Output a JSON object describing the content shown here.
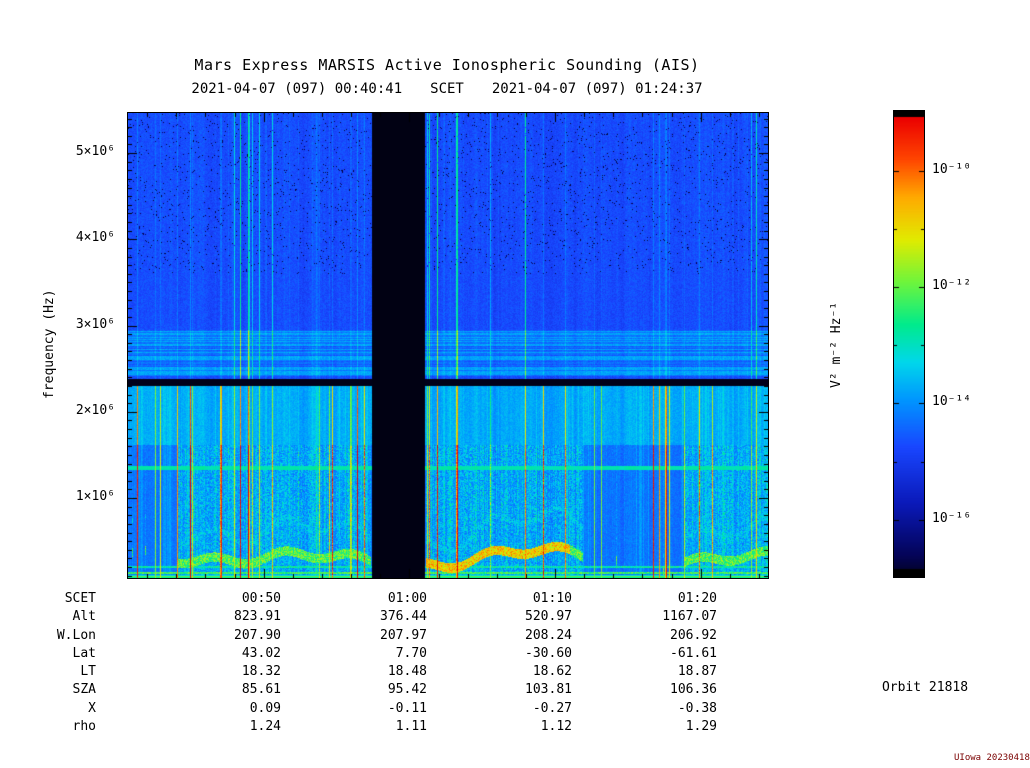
{
  "orbit_label": "Orbit 21818",
  "credit": "UIowa 20230418",
  "chart_data": {
    "type": "heatmap",
    "title": "Mars Express MARSIS Active Ionospheric Sounding (AIS)",
    "x_axis": {
      "label": "SCET",
      "start": "2021-04-07 (097) 00:40:41",
      "end": "2021-04-07 (097) 01:24:37",
      "tick_labels": [
        "00:50",
        "01:00",
        "01:10",
        "01:20"
      ],
      "tick_minutes": [
        50,
        60,
        70,
        80
      ]
    },
    "y_axis": {
      "label": "frequency (Hz)",
      "scale": "linear",
      "range_hz": [
        70000,
        5460000
      ],
      "tick_hz": [
        1000000,
        2000000,
        3000000,
        4000000,
        5000000
      ],
      "tick_labels": [
        "1×10⁶",
        "2×10⁶",
        "3×10⁶",
        "4×10⁶",
        "5×10⁶"
      ]
    },
    "color_axis": {
      "label": "V² m⁻² Hz⁻¹",
      "scale": "log",
      "tick_labels": [
        "10⁻¹⁰",
        "10⁻¹²",
        "10⁻¹⁴",
        "10⁻¹⁶"
      ],
      "colormap": "rainbow (dark blue low to red high)"
    },
    "features": {
      "data_gap_minutes": [
        57.4,
        61.08
      ],
      "blanked_band_hz": [
        2300000,
        2385000
      ],
      "narrowband_emission_hz": 1353000,
      "enhanced_band_below_hz": 1620000
    },
    "ephemeris_rows": [
      {
        "label": "SCET",
        "values": [
          "00:50",
          "01:00",
          "01:10",
          "01:20"
        ]
      },
      {
        "label": "Alt",
        "values": [
          "823.91",
          "376.44",
          "520.97",
          "1167.07"
        ]
      },
      {
        "label": "W.Lon",
        "values": [
          "207.90",
          "207.97",
          "208.24",
          "206.92"
        ]
      },
      {
        "label": "Lat",
        "values": [
          "43.02",
          "7.70",
          "-30.60",
          "-61.61"
        ]
      },
      {
        "label": "LT",
        "values": [
          "18.32",
          "18.48",
          "18.62",
          "18.87"
        ]
      },
      {
        "label": "SZA",
        "values": [
          "85.61",
          "95.42",
          "103.81",
          "106.36"
        ]
      },
      {
        "label": "X",
        "values": [
          "0.09",
          "-0.11",
          "-0.27",
          "-0.38"
        ]
      },
      {
        "label": "rho",
        "values": [
          "1.24",
          "1.11",
          "1.12",
          "1.29"
        ]
      }
    ]
  }
}
